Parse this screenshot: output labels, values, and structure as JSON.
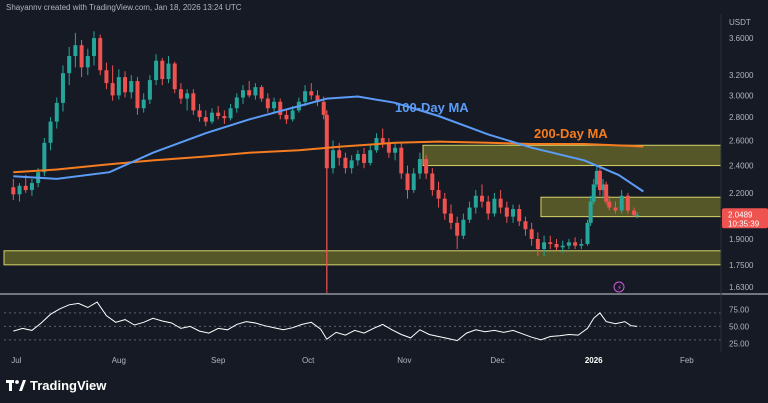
{
  "header": {
    "attribution": "Shayannv created with TradingView.com, Jan 18, 2026 13:24 UTC"
  },
  "brand": {
    "name": "TradingView",
    "logo_icon": "tradingview-logo-icon"
  },
  "colors": {
    "background": "#161a25",
    "up": "#26a69a",
    "down": "#ef5350",
    "ma100": "#5b9cf6",
    "ma200": "#f57c1f",
    "zone_fill": "#8b8a2e",
    "zone_edge": "#d6d36a",
    "rsi": "#ffffff",
    "last_price_bg": "#ef5350",
    "crosshair_line": "#ef5350",
    "event_marker": "#d05ad8"
  },
  "chart_data": [
    {
      "type": "candlestick",
      "y_axis": {
        "unit_label": "USDT",
        "scale": "log",
        "ticks": [
          "3.6000",
          "3.2000",
          "3.0000",
          "2.8000",
          "2.6000",
          "2.4000",
          "2.2000",
          "1.9000",
          "1.7500",
          "1.6300"
        ],
        "ylim": [
          1.6,
          3.85
        ]
      },
      "x_axis": {
        "ticks": [
          "Jul",
          "Aug",
          "Sep",
          "Oct",
          "Nov",
          "Dec",
          "2026",
          "Feb"
        ],
        "range": [
          "2025-06-28",
          "2026-02-14"
        ]
      },
      "last_price": {
        "value": "2.0489",
        "countdown": "10:35:39"
      },
      "annotations": [
        {
          "text": "100-Day MA",
          "series": "ma100"
        },
        {
          "text": "200-Day MA",
          "series": "ma200"
        }
      ],
      "ma100": {
        "name": "100-Day MA",
        "points": [
          [
            "2025-07-01",
            2.32
          ],
          [
            "2025-07-15",
            2.3
          ],
          [
            "2025-08-01",
            2.35
          ],
          [
            "2025-08-15",
            2.5
          ],
          [
            "2025-09-01",
            2.66
          ],
          [
            "2025-09-15",
            2.78
          ],
          [
            "2025-10-01",
            2.9
          ],
          [
            "2025-10-10",
            2.97
          ],
          [
            "2025-10-20",
            2.99
          ],
          [
            "2025-11-01",
            2.93
          ],
          [
            "2025-11-15",
            2.81
          ],
          [
            "2025-12-01",
            2.65
          ],
          [
            "2025-12-15",
            2.54
          ],
          [
            "2026-01-01",
            2.44
          ],
          [
            "2026-01-12",
            2.33
          ],
          [
            "2026-01-20",
            2.21
          ]
        ]
      },
      "ma200": {
        "name": "200-Day MA",
        "points": [
          [
            "2025-07-01",
            2.35
          ],
          [
            "2025-07-15",
            2.37
          ],
          [
            "2025-08-01",
            2.41
          ],
          [
            "2025-08-15",
            2.44
          ],
          [
            "2025-09-01",
            2.47
          ],
          [
            "2025-09-15",
            2.5
          ],
          [
            "2025-10-01",
            2.52
          ],
          [
            "2025-10-15",
            2.55
          ],
          [
            "2025-11-01",
            2.58
          ],
          [
            "2025-11-15",
            2.59
          ],
          [
            "2025-12-01",
            2.58
          ],
          [
            "2025-12-15",
            2.57
          ],
          [
            "2026-01-01",
            2.57
          ],
          [
            "2026-01-20",
            2.55
          ]
        ]
      },
      "zones": [
        {
          "from": "2025-11-10",
          "to": "2026-02-14",
          "low": 2.4,
          "high": 2.56
        },
        {
          "from": "2025-12-18",
          "to": "2026-02-14",
          "low": 2.04,
          "high": 2.17
        },
        {
          "from": "2025-06-28",
          "to": "2026-02-14",
          "low": 1.75,
          "high": 1.83
        }
      ],
      "candles": [
        [
          "2025-07-01",
          2.24,
          2.3,
          2.15,
          2.19
        ],
        [
          "2025-07-03",
          2.19,
          2.27,
          2.14,
          2.25
        ],
        [
          "2025-07-05",
          2.25,
          2.33,
          2.2,
          2.22
        ],
        [
          "2025-07-07",
          2.22,
          2.3,
          2.18,
          2.27
        ],
        [
          "2025-07-09",
          2.27,
          2.38,
          2.24,
          2.35
        ],
        [
          "2025-07-11",
          2.35,
          2.62,
          2.32,
          2.58
        ],
        [
          "2025-07-13",
          2.58,
          2.8,
          2.52,
          2.76
        ],
        [
          "2025-07-15",
          2.76,
          2.98,
          2.7,
          2.93
        ],
        [
          "2025-07-17",
          2.93,
          3.3,
          2.85,
          3.22
        ],
        [
          "2025-07-19",
          3.22,
          3.5,
          3.1,
          3.4
        ],
        [
          "2025-07-21",
          3.4,
          3.66,
          3.28,
          3.52
        ],
        [
          "2025-07-23",
          3.52,
          3.58,
          3.18,
          3.28
        ],
        [
          "2025-07-25",
          3.28,
          3.48,
          3.2,
          3.4
        ],
        [
          "2025-07-27",
          3.4,
          3.68,
          3.3,
          3.6
        ],
        [
          "2025-07-29",
          3.6,
          3.64,
          3.2,
          3.25
        ],
        [
          "2025-07-31",
          3.25,
          3.33,
          3.06,
          3.12
        ],
        [
          "2025-08-02",
          3.12,
          3.3,
          2.95,
          3.0
        ],
        [
          "2025-08-04",
          3.0,
          3.26,
          2.96,
          3.18
        ],
        [
          "2025-08-06",
          3.18,
          3.24,
          2.98,
          3.03
        ],
        [
          "2025-08-08",
          3.03,
          3.2,
          2.97,
          3.14
        ],
        [
          "2025-08-10",
          3.14,
          3.18,
          2.82,
          2.88
        ],
        [
          "2025-08-12",
          2.88,
          3.02,
          2.84,
          2.96
        ],
        [
          "2025-08-14",
          2.96,
          3.2,
          2.92,
          3.15
        ],
        [
          "2025-08-16",
          3.15,
          3.42,
          3.1,
          3.35
        ],
        [
          "2025-08-18",
          3.35,
          3.38,
          3.1,
          3.16
        ],
        [
          "2025-08-20",
          3.16,
          3.4,
          3.12,
          3.32
        ],
        [
          "2025-08-22",
          3.32,
          3.34,
          3.02,
          3.06
        ],
        [
          "2025-08-24",
          3.06,
          3.12,
          2.92,
          2.97
        ],
        [
          "2025-08-26",
          2.97,
          3.06,
          2.86,
          3.02
        ],
        [
          "2025-08-28",
          3.02,
          3.06,
          2.82,
          2.86
        ],
        [
          "2025-08-30",
          2.86,
          2.92,
          2.76,
          2.8
        ],
        [
          "2025-09-01",
          2.8,
          2.86,
          2.72,
          2.76
        ],
        [
          "2025-09-03",
          2.76,
          2.88,
          2.74,
          2.84
        ],
        [
          "2025-09-05",
          2.84,
          2.9,
          2.78,
          2.81
        ],
        [
          "2025-09-07",
          2.81,
          2.86,
          2.74,
          2.79
        ],
        [
          "2025-09-09",
          2.79,
          2.92,
          2.77,
          2.88
        ],
        [
          "2025-09-11",
          2.88,
          3.02,
          2.84,
          2.98
        ],
        [
          "2025-09-13",
          2.98,
          3.1,
          2.92,
          3.05
        ],
        [
          "2025-09-15",
          3.05,
          3.14,
          2.98,
          3.0
        ],
        [
          "2025-09-17",
          3.0,
          3.12,
          2.96,
          3.08
        ],
        [
          "2025-09-19",
          3.08,
          3.1,
          2.94,
          2.97
        ],
        [
          "2025-09-21",
          2.97,
          3.02,
          2.84,
          2.88
        ],
        [
          "2025-09-23",
          2.88,
          2.98,
          2.84,
          2.94
        ],
        [
          "2025-09-25",
          2.94,
          2.97,
          2.78,
          2.82
        ],
        [
          "2025-09-27",
          2.82,
          2.86,
          2.74,
          2.78
        ],
        [
          "2025-09-29",
          2.78,
          2.9,
          2.76,
          2.86
        ],
        [
          "2025-10-01",
          2.86,
          2.98,
          2.84,
          2.94
        ],
        [
          "2025-10-03",
          2.94,
          3.1,
          2.9,
          3.04
        ],
        [
          "2025-10-05",
          3.04,
          3.12,
          2.96,
          3.0
        ],
        [
          "2025-10-07",
          3.0,
          3.05,
          2.9,
          2.94
        ],
        [
          "2025-10-09",
          2.94,
          2.99,
          2.78,
          2.82
        ],
        [
          "2025-10-10",
          2.82,
          2.86,
          1.62,
          2.38
        ],
        [
          "2025-10-12",
          2.38,
          2.6,
          2.34,
          2.52
        ],
        [
          "2025-10-14",
          2.52,
          2.58,
          2.4,
          2.46
        ],
        [
          "2025-10-16",
          2.46,
          2.5,
          2.34,
          2.38
        ],
        [
          "2025-10-18",
          2.38,
          2.48,
          2.34,
          2.44
        ],
        [
          "2025-10-20",
          2.44,
          2.52,
          2.4,
          2.49
        ],
        [
          "2025-10-22",
          2.49,
          2.54,
          2.38,
          2.42
        ],
        [
          "2025-10-24",
          2.42,
          2.56,
          2.4,
          2.52
        ],
        [
          "2025-10-26",
          2.52,
          2.66,
          2.5,
          2.62
        ],
        [
          "2025-10-28",
          2.62,
          2.7,
          2.54,
          2.58
        ],
        [
          "2025-10-30",
          2.58,
          2.62,
          2.46,
          2.5
        ],
        [
          "2025-11-01",
          2.5,
          2.58,
          2.44,
          2.54
        ],
        [
          "2025-11-03",
          2.54,
          2.58,
          2.3,
          2.34
        ],
        [
          "2025-11-05",
          2.34,
          2.4,
          2.16,
          2.22
        ],
        [
          "2025-11-07",
          2.22,
          2.38,
          2.2,
          2.34
        ],
        [
          "2025-11-09",
          2.34,
          2.5,
          2.3,
          2.45
        ],
        [
          "2025-11-11",
          2.45,
          2.48,
          2.3,
          2.34
        ],
        [
          "2025-11-13",
          2.34,
          2.38,
          2.18,
          2.22
        ],
        [
          "2025-11-15",
          2.22,
          2.28,
          2.1,
          2.16
        ],
        [
          "2025-11-17",
          2.16,
          2.2,
          2.02,
          2.06
        ],
        [
          "2025-11-19",
          2.06,
          2.12,
          1.96,
          2.0
        ],
        [
          "2025-11-21",
          2.0,
          2.04,
          1.84,
          1.92
        ],
        [
          "2025-11-23",
          1.92,
          2.06,
          1.9,
          2.02
        ],
        [
          "2025-11-25",
          2.02,
          2.14,
          2.0,
          2.1
        ],
        [
          "2025-11-27",
          2.1,
          2.22,
          2.06,
          2.18
        ],
        [
          "2025-11-29",
          2.18,
          2.26,
          2.1,
          2.14
        ],
        [
          "2025-12-01",
          2.14,
          2.18,
          2.02,
          2.06
        ],
        [
          "2025-12-03",
          2.06,
          2.2,
          2.04,
          2.16
        ],
        [
          "2025-12-05",
          2.16,
          2.22,
          2.06,
          2.1
        ],
        [
          "2025-12-07",
          2.1,
          2.14,
          2.0,
          2.04
        ],
        [
          "2025-12-09",
          2.04,
          2.12,
          2.0,
          2.09
        ],
        [
          "2025-12-11",
          2.09,
          2.12,
          1.98,
          2.01
        ],
        [
          "2025-12-13",
          2.01,
          2.04,
          1.92,
          1.96
        ],
        [
          "2025-12-15",
          1.96,
          2.0,
          1.86,
          1.9
        ],
        [
          "2025-12-17",
          1.9,
          1.94,
          1.8,
          1.84
        ],
        [
          "2025-12-19",
          1.84,
          1.92,
          1.8,
          1.88
        ],
        [
          "2025-12-21",
          1.88,
          1.92,
          1.84,
          1.87
        ],
        [
          "2025-12-23",
          1.87,
          1.9,
          1.83,
          1.85
        ],
        [
          "2025-12-25",
          1.85,
          1.89,
          1.82,
          1.86
        ],
        [
          "2025-12-27",
          1.86,
          1.9,
          1.84,
          1.88
        ],
        [
          "2025-12-29",
          1.88,
          1.91,
          1.84,
          1.86
        ],
        [
          "2025-12-31",
          1.86,
          1.9,
          1.84,
          1.87
        ],
        [
          "2026-01-02",
          1.87,
          2.02,
          1.86,
          2.0
        ],
        [
          "2026-01-03",
          2.0,
          2.18,
          1.98,
          2.14
        ],
        [
          "2026-01-04",
          2.14,
          2.3,
          2.12,
          2.26
        ],
        [
          "2026-01-05",
          2.26,
          2.4,
          2.24,
          2.36
        ],
        [
          "2026-01-06",
          2.36,
          2.38,
          2.18,
          2.22
        ],
        [
          "2026-01-07",
          2.22,
          2.3,
          2.16,
          2.26
        ],
        [
          "2026-01-08",
          2.26,
          2.28,
          2.12,
          2.14
        ],
        [
          "2026-01-09",
          2.14,
          2.18,
          2.08,
          2.1
        ],
        [
          "2026-01-11",
          2.1,
          2.14,
          2.06,
          2.08
        ],
        [
          "2026-01-13",
          2.08,
          2.22,
          2.06,
          2.18
        ],
        [
          "2026-01-15",
          2.18,
          2.2,
          2.06,
          2.08
        ],
        [
          "2026-01-17",
          2.08,
          2.1,
          2.04,
          2.05
        ],
        [
          "2026-01-18",
          2.05,
          2.07,
          2.03,
          2.05
        ]
      ]
    },
    {
      "type": "line",
      "name": "RSI",
      "y_axis": {
        "ticks": [
          "75.00",
          "50.00",
          "25.00"
        ],
        "ylim": [
          15,
          95
        ],
        "levels": [
          70,
          50,
          30
        ]
      },
      "points": [
        [
          "2025-07-01",
          43
        ],
        [
          "2025-07-04",
          47
        ],
        [
          "2025-07-07",
          44
        ],
        [
          "2025-07-10",
          55
        ],
        [
          "2025-07-13",
          68
        ],
        [
          "2025-07-16",
          76
        ],
        [
          "2025-07-19",
          82
        ],
        [
          "2025-07-22",
          84
        ],
        [
          "2025-07-25",
          78
        ],
        [
          "2025-07-28",
          86
        ],
        [
          "2025-07-31",
          66
        ],
        [
          "2025-08-03",
          56
        ],
        [
          "2025-08-06",
          60
        ],
        [
          "2025-08-09",
          52
        ],
        [
          "2025-08-12",
          56
        ],
        [
          "2025-08-15",
          62
        ],
        [
          "2025-08-18",
          58
        ],
        [
          "2025-08-21",
          55
        ],
        [
          "2025-08-24",
          47
        ],
        [
          "2025-08-27",
          50
        ],
        [
          "2025-08-30",
          43
        ],
        [
          "2025-09-02",
          40
        ],
        [
          "2025-09-05",
          47
        ],
        [
          "2025-09-08",
          45
        ],
        [
          "2025-09-11",
          53
        ],
        [
          "2025-09-14",
          57
        ],
        [
          "2025-09-17",
          55
        ],
        [
          "2025-09-20",
          51
        ],
        [
          "2025-09-23",
          48
        ],
        [
          "2025-09-26",
          45
        ],
        [
          "2025-09-29",
          48
        ],
        [
          "2025-10-02",
          53
        ],
        [
          "2025-10-05",
          56
        ],
        [
          "2025-10-08",
          46
        ],
        [
          "2025-10-10",
          31
        ],
        [
          "2025-10-13",
          41
        ],
        [
          "2025-10-16",
          37
        ],
        [
          "2025-10-19",
          44
        ],
        [
          "2025-10-22",
          40
        ],
        [
          "2025-10-25",
          47
        ],
        [
          "2025-10-28",
          53
        ],
        [
          "2025-10-31",
          45
        ],
        [
          "2025-11-03",
          38
        ],
        [
          "2025-11-06",
          33
        ],
        [
          "2025-11-09",
          45
        ],
        [
          "2025-11-12",
          38
        ],
        [
          "2025-11-15",
          35
        ],
        [
          "2025-11-18",
          32
        ],
        [
          "2025-11-21",
          29
        ],
        [
          "2025-11-24",
          40
        ],
        [
          "2025-11-27",
          45
        ],
        [
          "2025-11-30",
          42
        ],
        [
          "2025-12-03",
          44
        ],
        [
          "2025-12-06",
          41
        ],
        [
          "2025-12-09",
          44
        ],
        [
          "2025-12-12",
          39
        ],
        [
          "2025-12-15",
          34
        ],
        [
          "2025-12-18",
          30
        ],
        [
          "2025-12-21",
          35
        ],
        [
          "2025-12-24",
          36
        ],
        [
          "2025-12-27",
          38
        ],
        [
          "2025-12-30",
          37
        ],
        [
          "2026-01-02",
          47
        ],
        [
          "2026-01-04",
          62
        ],
        [
          "2026-01-06",
          70
        ],
        [
          "2026-01-08",
          57
        ],
        [
          "2026-01-11",
          54
        ],
        [
          "2026-01-14",
          57
        ],
        [
          "2026-01-16",
          51
        ],
        [
          "2026-01-18",
          50
        ]
      ]
    }
  ]
}
